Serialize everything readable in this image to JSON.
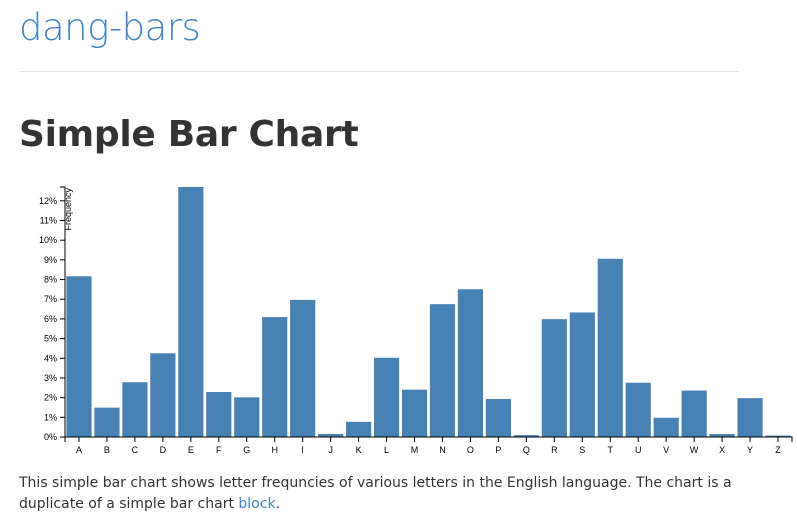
{
  "header": {
    "site_title": "dang-bars"
  },
  "page": {
    "title": "Simple Bar Chart",
    "description_text": "This simple bar chart shows letter frequncies of various letters in the English language. The chart is a duplicate of a simple bar chart ",
    "description_link": "block",
    "description_end": "."
  },
  "colors": {
    "bar": "#4682b4",
    "link": "#4183c4"
  },
  "chart_data": {
    "type": "bar",
    "title": "",
    "xlabel": "",
    "ylabel": "Frequency",
    "categories": [
      "A",
      "B",
      "C",
      "D",
      "E",
      "F",
      "G",
      "H",
      "I",
      "J",
      "K",
      "L",
      "M",
      "N",
      "O",
      "P",
      "Q",
      "R",
      "S",
      "T",
      "U",
      "V",
      "W",
      "X",
      "Y",
      "Z"
    ],
    "values": [
      8.167,
      1.492,
      2.782,
      4.253,
      12.702,
      2.288,
      2.015,
      6.094,
      6.966,
      0.153,
      0.772,
      4.025,
      2.406,
      6.749,
      7.507,
      1.929,
      0.095,
      5.987,
      6.327,
      9.056,
      2.758,
      0.978,
      2.36,
      0.15,
      1.974,
      0.074
    ],
    "yticks": [
      "0%",
      "1%",
      "2%",
      "3%",
      "4%",
      "5%",
      "6%",
      "7%",
      "8%",
      "9%",
      "10%",
      "11%",
      "12%"
    ],
    "ylim": [
      0,
      12.702
    ],
    "grid": false,
    "legend": "none"
  }
}
